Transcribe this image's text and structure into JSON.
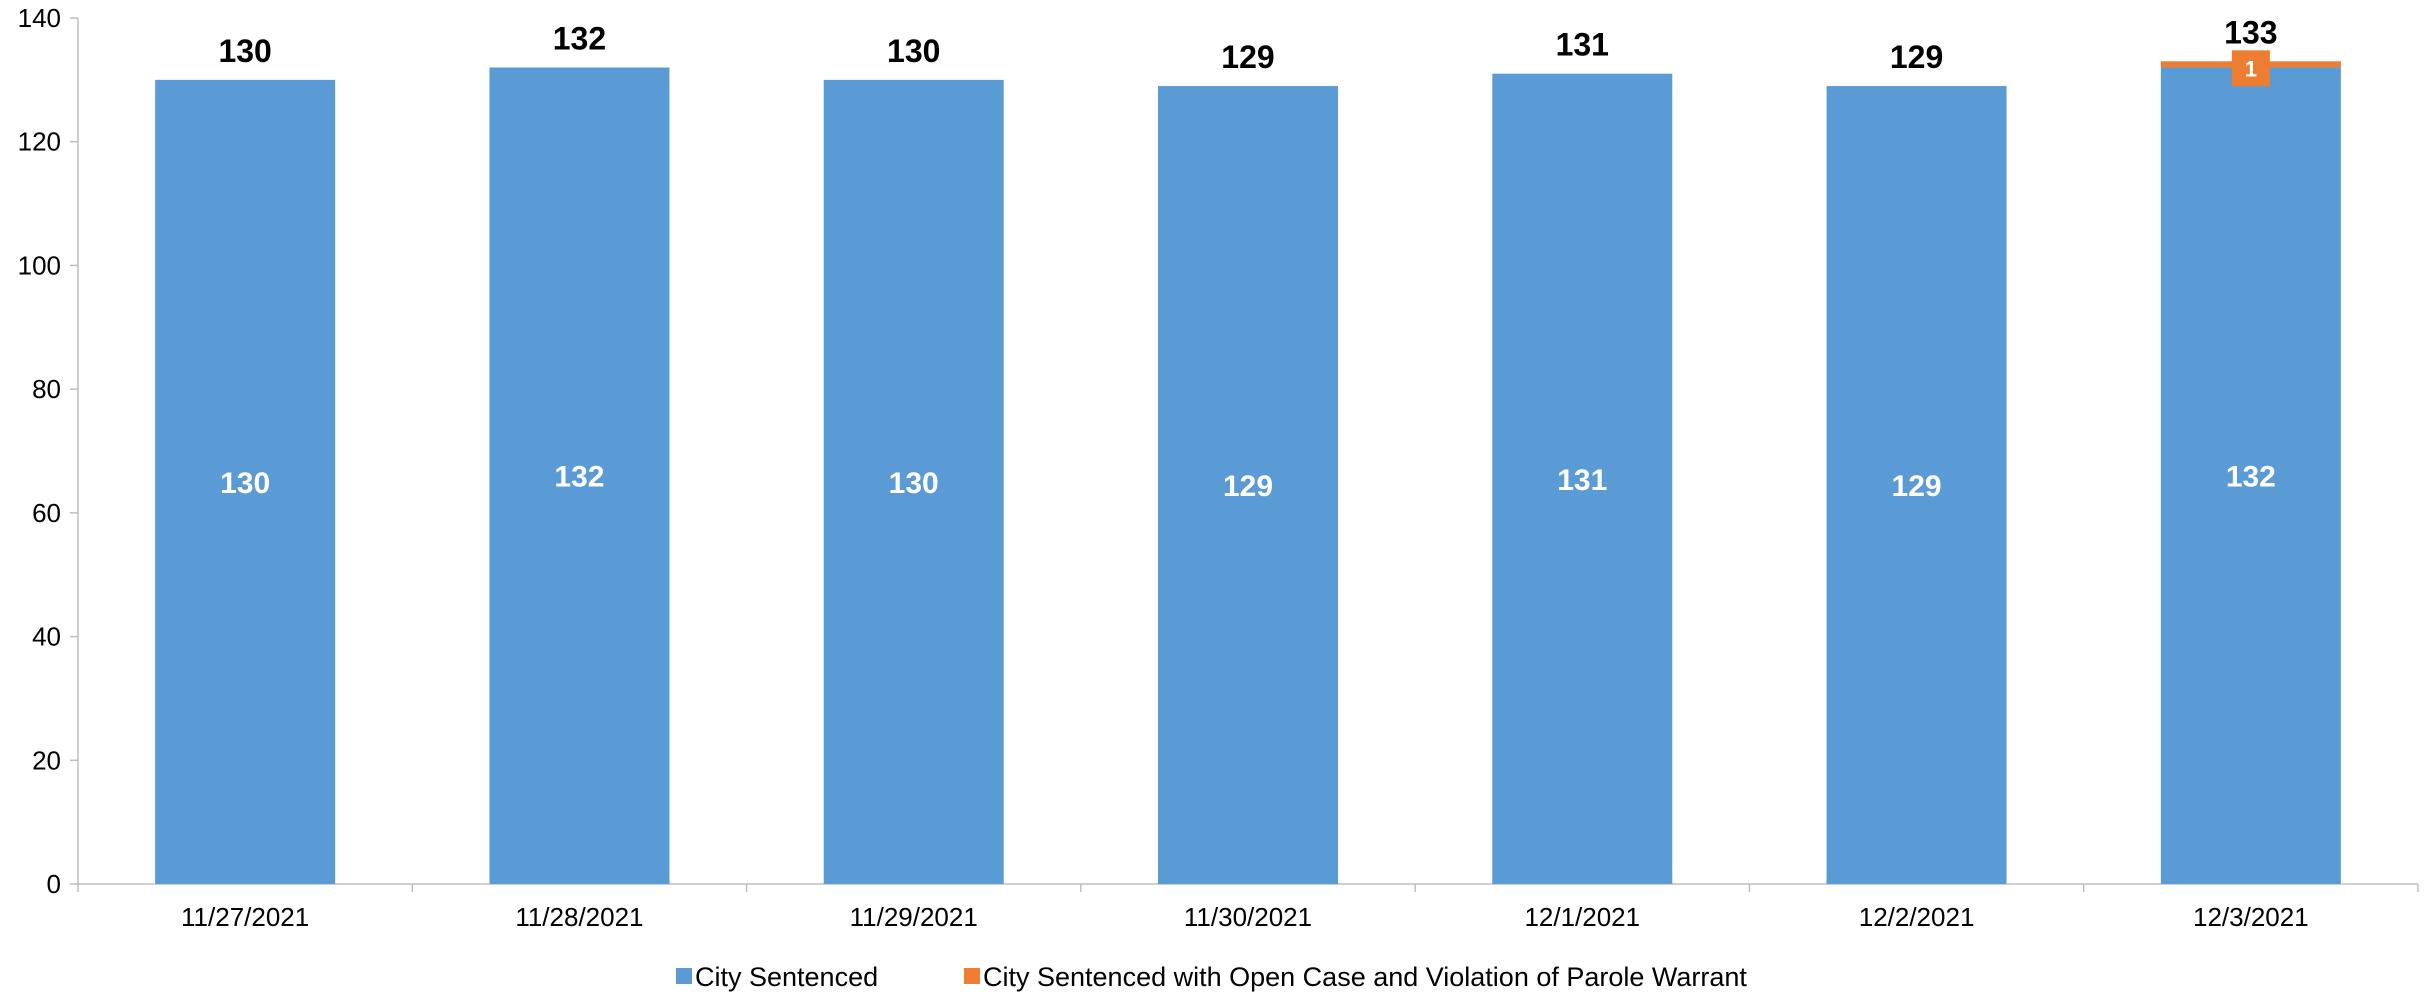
{
  "chart_data": {
    "type": "bar",
    "stacked": true,
    "title": "",
    "xlabel": "",
    "ylabel": "",
    "ylim": [
      0,
      140
    ],
    "yticks": [
      0,
      20,
      40,
      60,
      80,
      100,
      120,
      140
    ],
    "grid": false,
    "legend_position": "bottom",
    "categories": [
      "11/27/2021",
      "11/28/2021",
      "11/29/2021",
      "11/30/2021",
      "12/1/2021",
      "12/2/2021",
      "12/3/2021"
    ],
    "series": [
      {
        "name": "City Sentenced",
        "color": "#5B9BD5",
        "values": [
          130,
          132,
          130,
          129,
          131,
          129,
          132
        ]
      },
      {
        "name": "City Sentenced with Open Case and Violation of Parole Warrant",
        "color": "#ED7D31",
        "values": [
          0,
          0,
          0,
          0,
          0,
          0,
          1
        ]
      }
    ],
    "totals": [
      130,
      132,
      130,
      129,
      131,
      129,
      133
    ]
  }
}
